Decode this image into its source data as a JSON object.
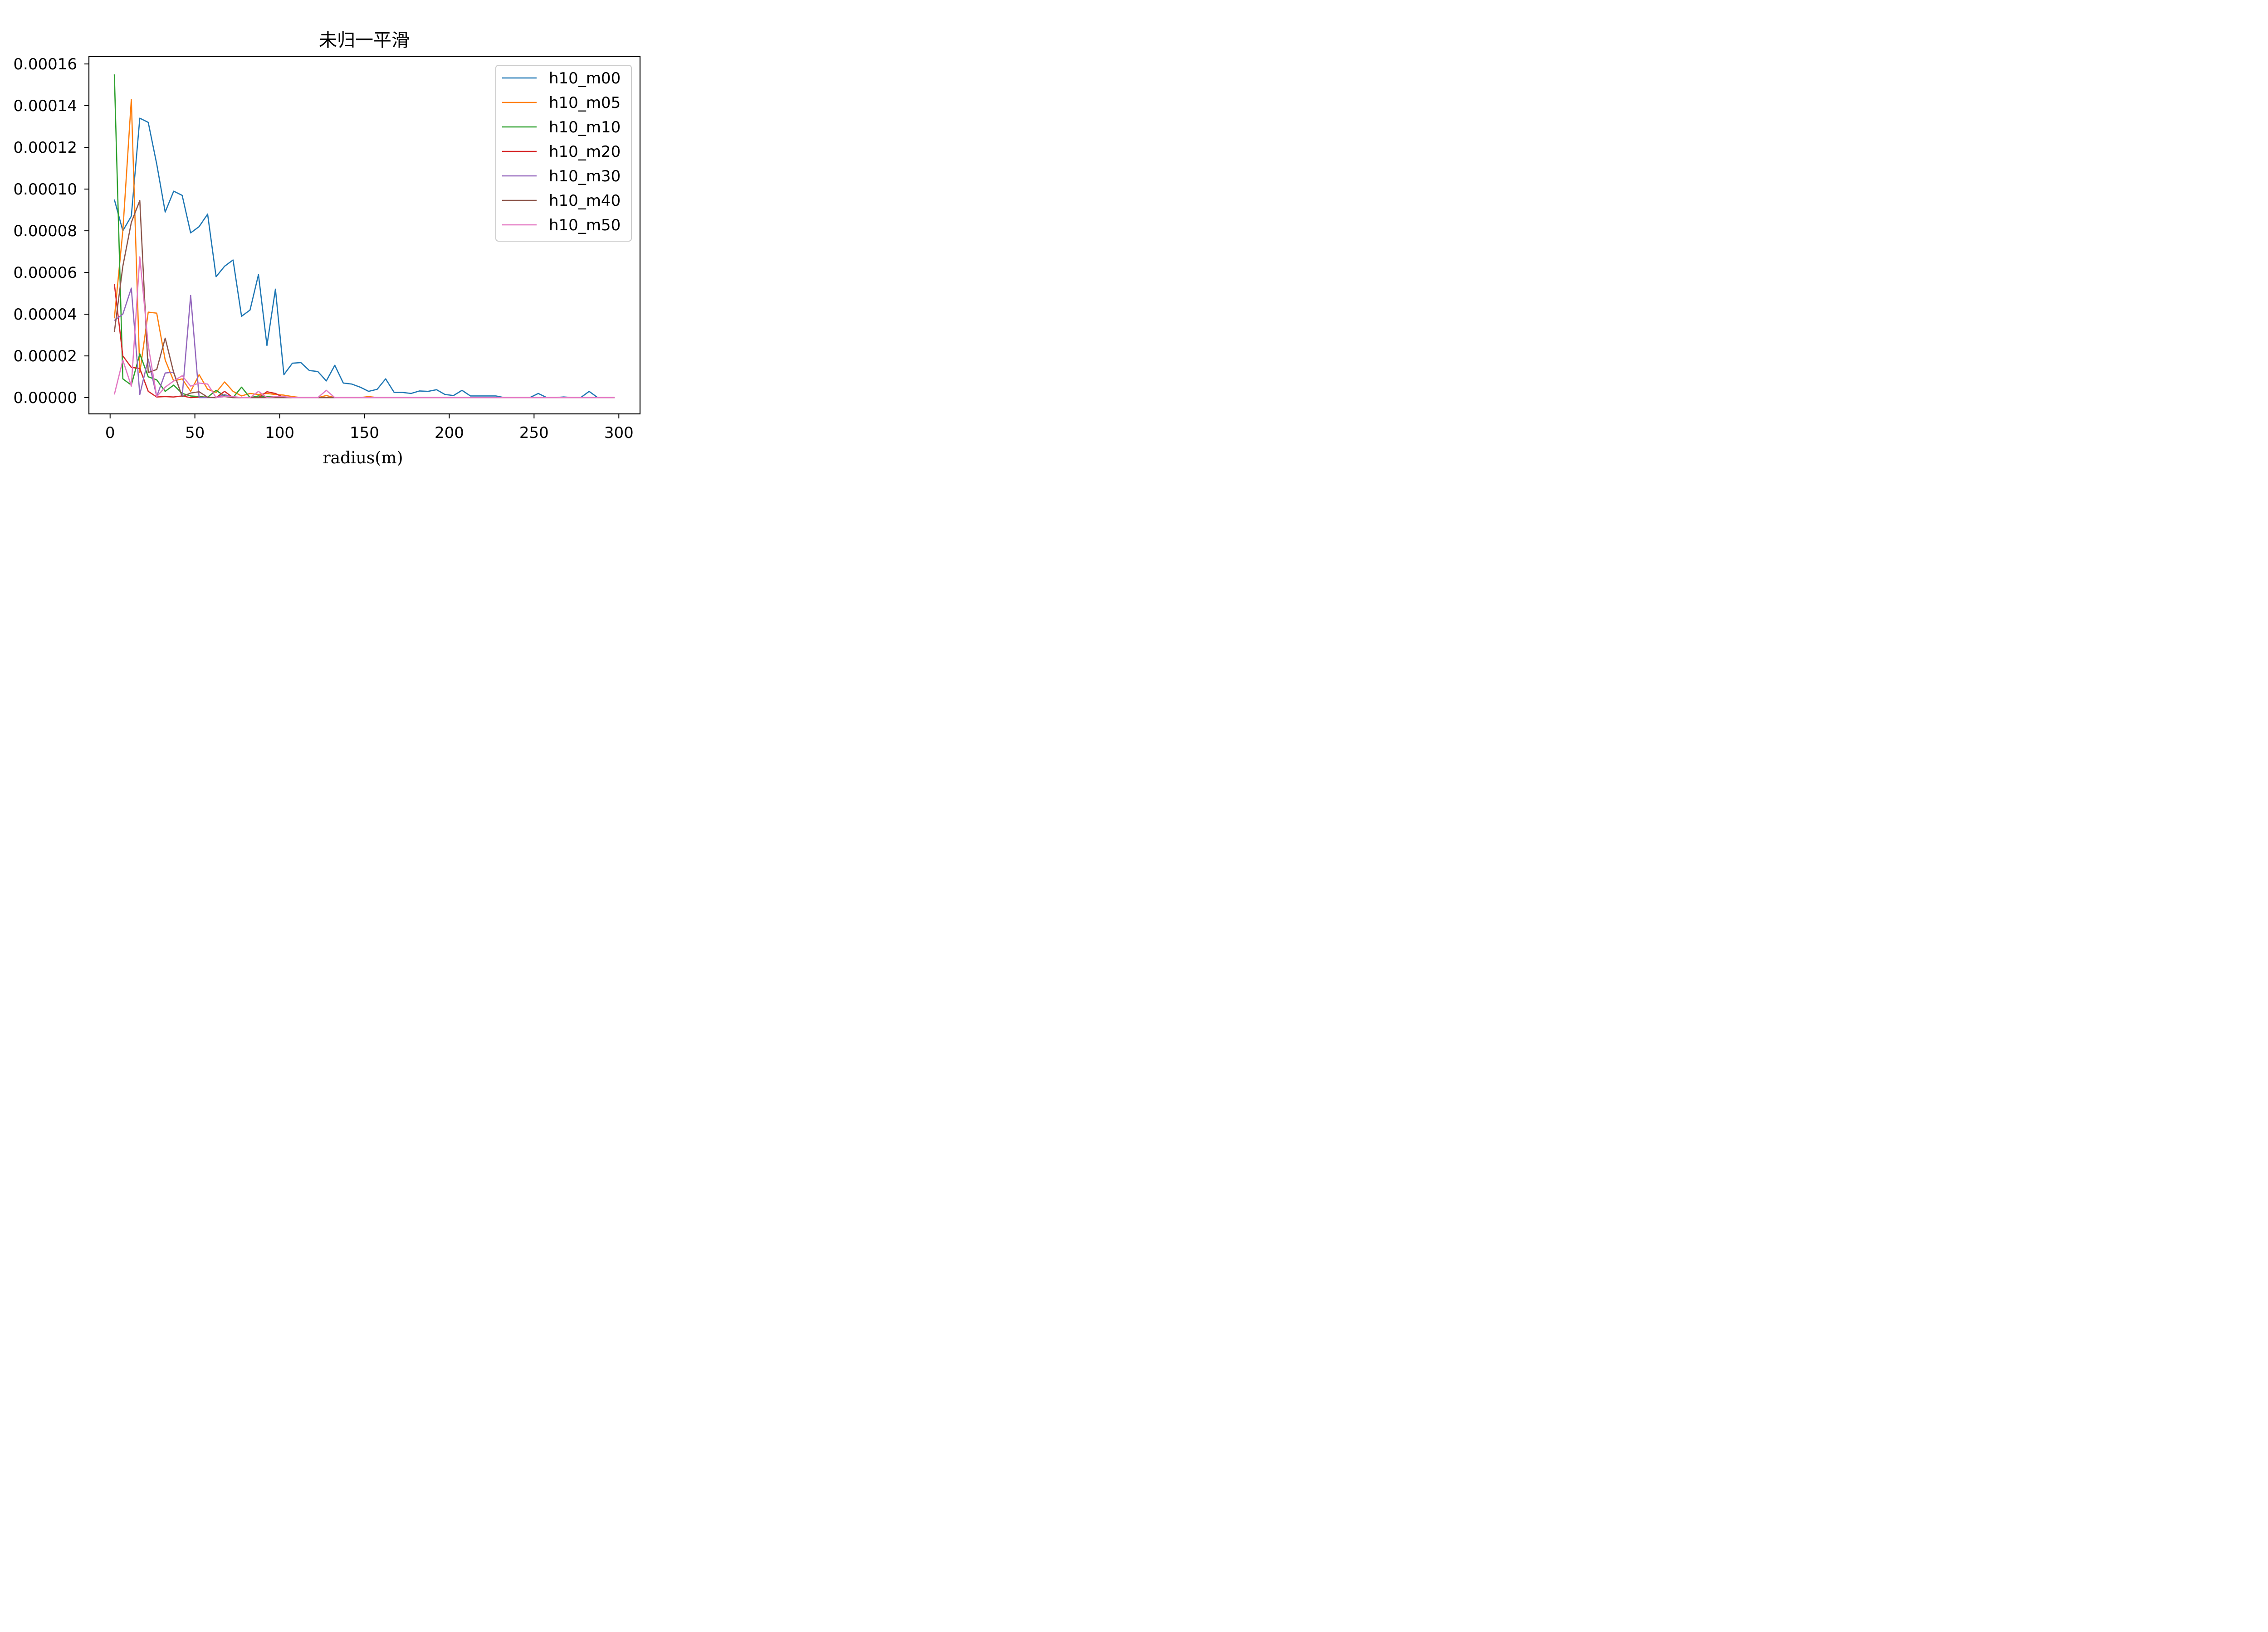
{
  "chart_data": {
    "type": "line",
    "title": "未归一平滑",
    "xlabel": "radius(m)",
    "ylabel": "",
    "xlim": [
      -12.5,
      312.5
    ],
    "ylim": [
      -7.8e-06,
      0.0001635
    ],
    "xticks": [
      0,
      50,
      100,
      150,
      200,
      250,
      300
    ],
    "xtick_labels": [
      "0",
      "50",
      "100",
      "150",
      "200",
      "250",
      "300"
    ],
    "yticks": [
      0,
      2e-05,
      4e-05,
      6e-05,
      8e-05,
      0.0001,
      0.00012,
      0.00014,
      0.00016
    ],
    "ytick_labels": [
      "0.00000",
      "0.00002",
      "0.00004",
      "0.00006",
      "0.00008",
      "0.00010",
      "0.00012",
      "0.00014",
      "0.00016"
    ],
    "grid": false,
    "legend_position": "upper right",
    "x": [
      2.5,
      7.5,
      12.5,
      17.5,
      22.5,
      27.5,
      32.5,
      37.5,
      42.5,
      47.5,
      52.5,
      57.5,
      62.5,
      67.5,
      72.5,
      77.5,
      82.5,
      87.5,
      92.5,
      97.5,
      102.5,
      107.5,
      112.5,
      117.5,
      122.5,
      127.5,
      132.5,
      137.5,
      142.5,
      147.5,
      152.5,
      157.5,
      162.5,
      167.5,
      172.5,
      177.5,
      182.5,
      187.5,
      192.5,
      197.5,
      202.5,
      207.5,
      212.5,
      217.5,
      222.5,
      227.5,
      232.5,
      237.5,
      242.5,
      247.5,
      252.5,
      257.5,
      262.5,
      267.5,
      272.5,
      277.5,
      282.5,
      287.5,
      292.5,
      297.5
    ],
    "series": [
      {
        "name": "h10_m00",
        "color": "#1f77b4",
        "values": [
          9.5e-05,
          8e-05,
          8.7e-05,
          0.000134,
          0.000132,
          0.000112,
          8.9e-05,
          9.9e-05,
          9.7e-05,
          7.9e-05,
          8.2e-05,
          8.8e-05,
          5.8e-05,
          6.3e-05,
          6.6e-05,
          3.9e-05,
          4.2e-05,
          5.9e-05,
          2.5e-05,
          5.2e-05,
          1.1e-05,
          1.65e-05,
          1.68e-05,
          1.3e-05,
          1.25e-05,
          8e-06,
          1.55e-05,
          7e-06,
          6.5e-06,
          5e-06,
          3e-06,
          4e-06,
          9e-06,
          2.5e-06,
          2.5e-06,
          2e-06,
          3.2e-06,
          3e-06,
          3.8e-06,
          1.5e-06,
          1e-06,
          3.5e-06,
          8e-07,
          8e-07,
          8e-07,
          8e-07,
          0,
          0,
          0,
          0,
          2e-06,
          0,
          0,
          3e-07,
          0,
          0,
          3e-06,
          0,
          0,
          0
        ]
      },
      {
        "name": "h10_m05",
        "color": "#ff7f0e",
        "values": [
          3.8e-05,
          8e-05,
          0.000143,
          1.2e-05,
          4.1e-05,
          4.05e-05,
          1.8e-05,
          8e-06,
          9e-06,
          3e-06,
          1.1e-05,
          4e-06,
          2.5e-06,
          7.5e-06,
          3e-06,
          8e-07,
          2e-06,
          1.5e-06,
          2e-06,
          1.5e-06,
          1.2e-06,
          5e-07,
          0,
          0,
          0,
          1e-06,
          0,
          0,
          0,
          0,
          5e-07,
          0,
          0,
          0,
          0,
          0,
          0,
          0,
          0,
          0,
          0,
          0,
          0,
          0,
          0,
          0,
          0,
          0,
          0,
          0,
          0,
          0,
          0,
          0,
          0,
          0,
          0,
          0,
          0,
          0
        ]
      },
      {
        "name": "h10_m10",
        "color": "#2ca02c",
        "values": [
          0.000155,
          9e-06,
          6e-06,
          2.1e-05,
          1e-05,
          8.5e-06,
          3e-06,
          6e-06,
          2e-06,
          8e-07,
          5e-07,
          2e-07,
          3.5e-06,
          8e-07,
          0,
          5e-06,
          0,
          8e-07,
          5e-07,
          5e-07,
          0,
          0,
          0,
          0,
          0,
          0,
          0,
          0,
          0,
          0,
          0,
          0,
          0,
          0,
          0,
          0,
          0,
          0,
          0,
          0,
          0,
          0,
          0,
          0,
          0,
          0,
          0,
          0,
          0,
          0,
          0,
          0,
          0,
          0,
          0,
          0,
          0,
          0,
          0,
          0
        ]
      },
      {
        "name": "h10_m20",
        "color": "#d62728",
        "values": [
          5.45e-05,
          2e-05,
          1.45e-05,
          1.4e-05,
          3e-06,
          3e-07,
          5e-07,
          3e-07,
          8e-07,
          0,
          2e-07,
          2e-07,
          0,
          3e-06,
          0,
          0,
          0,
          0,
          2.8e-06,
          2e-06,
          0,
          0,
          0,
          0,
          0,
          0,
          0,
          0,
          0,
          0,
          0,
          0,
          0,
          0,
          0,
          0,
          0,
          0,
          0,
          0,
          0,
          0,
          0,
          0,
          0,
          0,
          0,
          0,
          0,
          0,
          0,
          0,
          0,
          0,
          0,
          0,
          0,
          0,
          0,
          0
        ]
      },
      {
        "name": "h10_m30",
        "color": "#9467bd",
        "values": [
          3.7e-05,
          4e-05,
          5.25e-05,
          1.5e-06,
          1.85e-05,
          5e-07,
          1.18e-05,
          1.22e-05,
          5e-07,
          4.9e-05,
          0,
          0,
          0,
          1.5e-06,
          0,
          0,
          0,
          0,
          0,
          0,
          0,
          0,
          0,
          0,
          0,
          0,
          0,
          0,
          0,
          0,
          0,
          0,
          0,
          0,
          0,
          0,
          0,
          0,
          0,
          0,
          0,
          0,
          0,
          0,
          0,
          0,
          0,
          0,
          0,
          0,
          0,
          0,
          0,
          0,
          0,
          0,
          0,
          0,
          0,
          0
        ]
      },
      {
        "name": "h10_m40",
        "color": "#8c564b",
        "values": [
          3.15e-05,
          6.3e-05,
          8.4e-05,
          9.45e-05,
          1.2e-05,
          1.35e-05,
          2.85e-05,
          1.2e-05,
          5e-07,
          2.2e-06,
          2.8e-06,
          2e-07,
          0,
          5e-07,
          0,
          0,
          0,
          0,
          0,
          0,
          0,
          0,
          0,
          0,
          0,
          0,
          0,
          0,
          0,
          0,
          0,
          0,
          0,
          0,
          0,
          0,
          0,
          0,
          0,
          0,
          0,
          0,
          0,
          0,
          0,
          0,
          0,
          0,
          0,
          0,
          0,
          0,
          0,
          0,
          0,
          0,
          0,
          0,
          0,
          0
        ]
      },
      {
        "name": "h10_m50",
        "color": "#e377c2",
        "values": [
          1.5e-06,
          1.8e-05,
          5.5e-06,
          6.75e-05,
          2.5e-05,
          5e-07,
          5e-06,
          8e-06,
          1.05e-05,
          5.5e-06,
          7e-06,
          6.5e-06,
          0,
          5e-07,
          5e-07,
          0,
          0,
          3e-06,
          0,
          5e-07,
          5e-07,
          0,
          0,
          0,
          0,
          3.5e-06,
          0,
          0,
          0,
          0,
          0,
          0,
          0,
          0,
          0,
          0,
          0,
          0,
          0,
          0,
          0,
          0,
          0,
          0,
          0,
          0,
          0,
          0,
          0,
          0,
          0,
          0,
          0,
          0,
          0,
          0,
          0,
          0,
          0,
          0
        ]
      }
    ]
  }
}
